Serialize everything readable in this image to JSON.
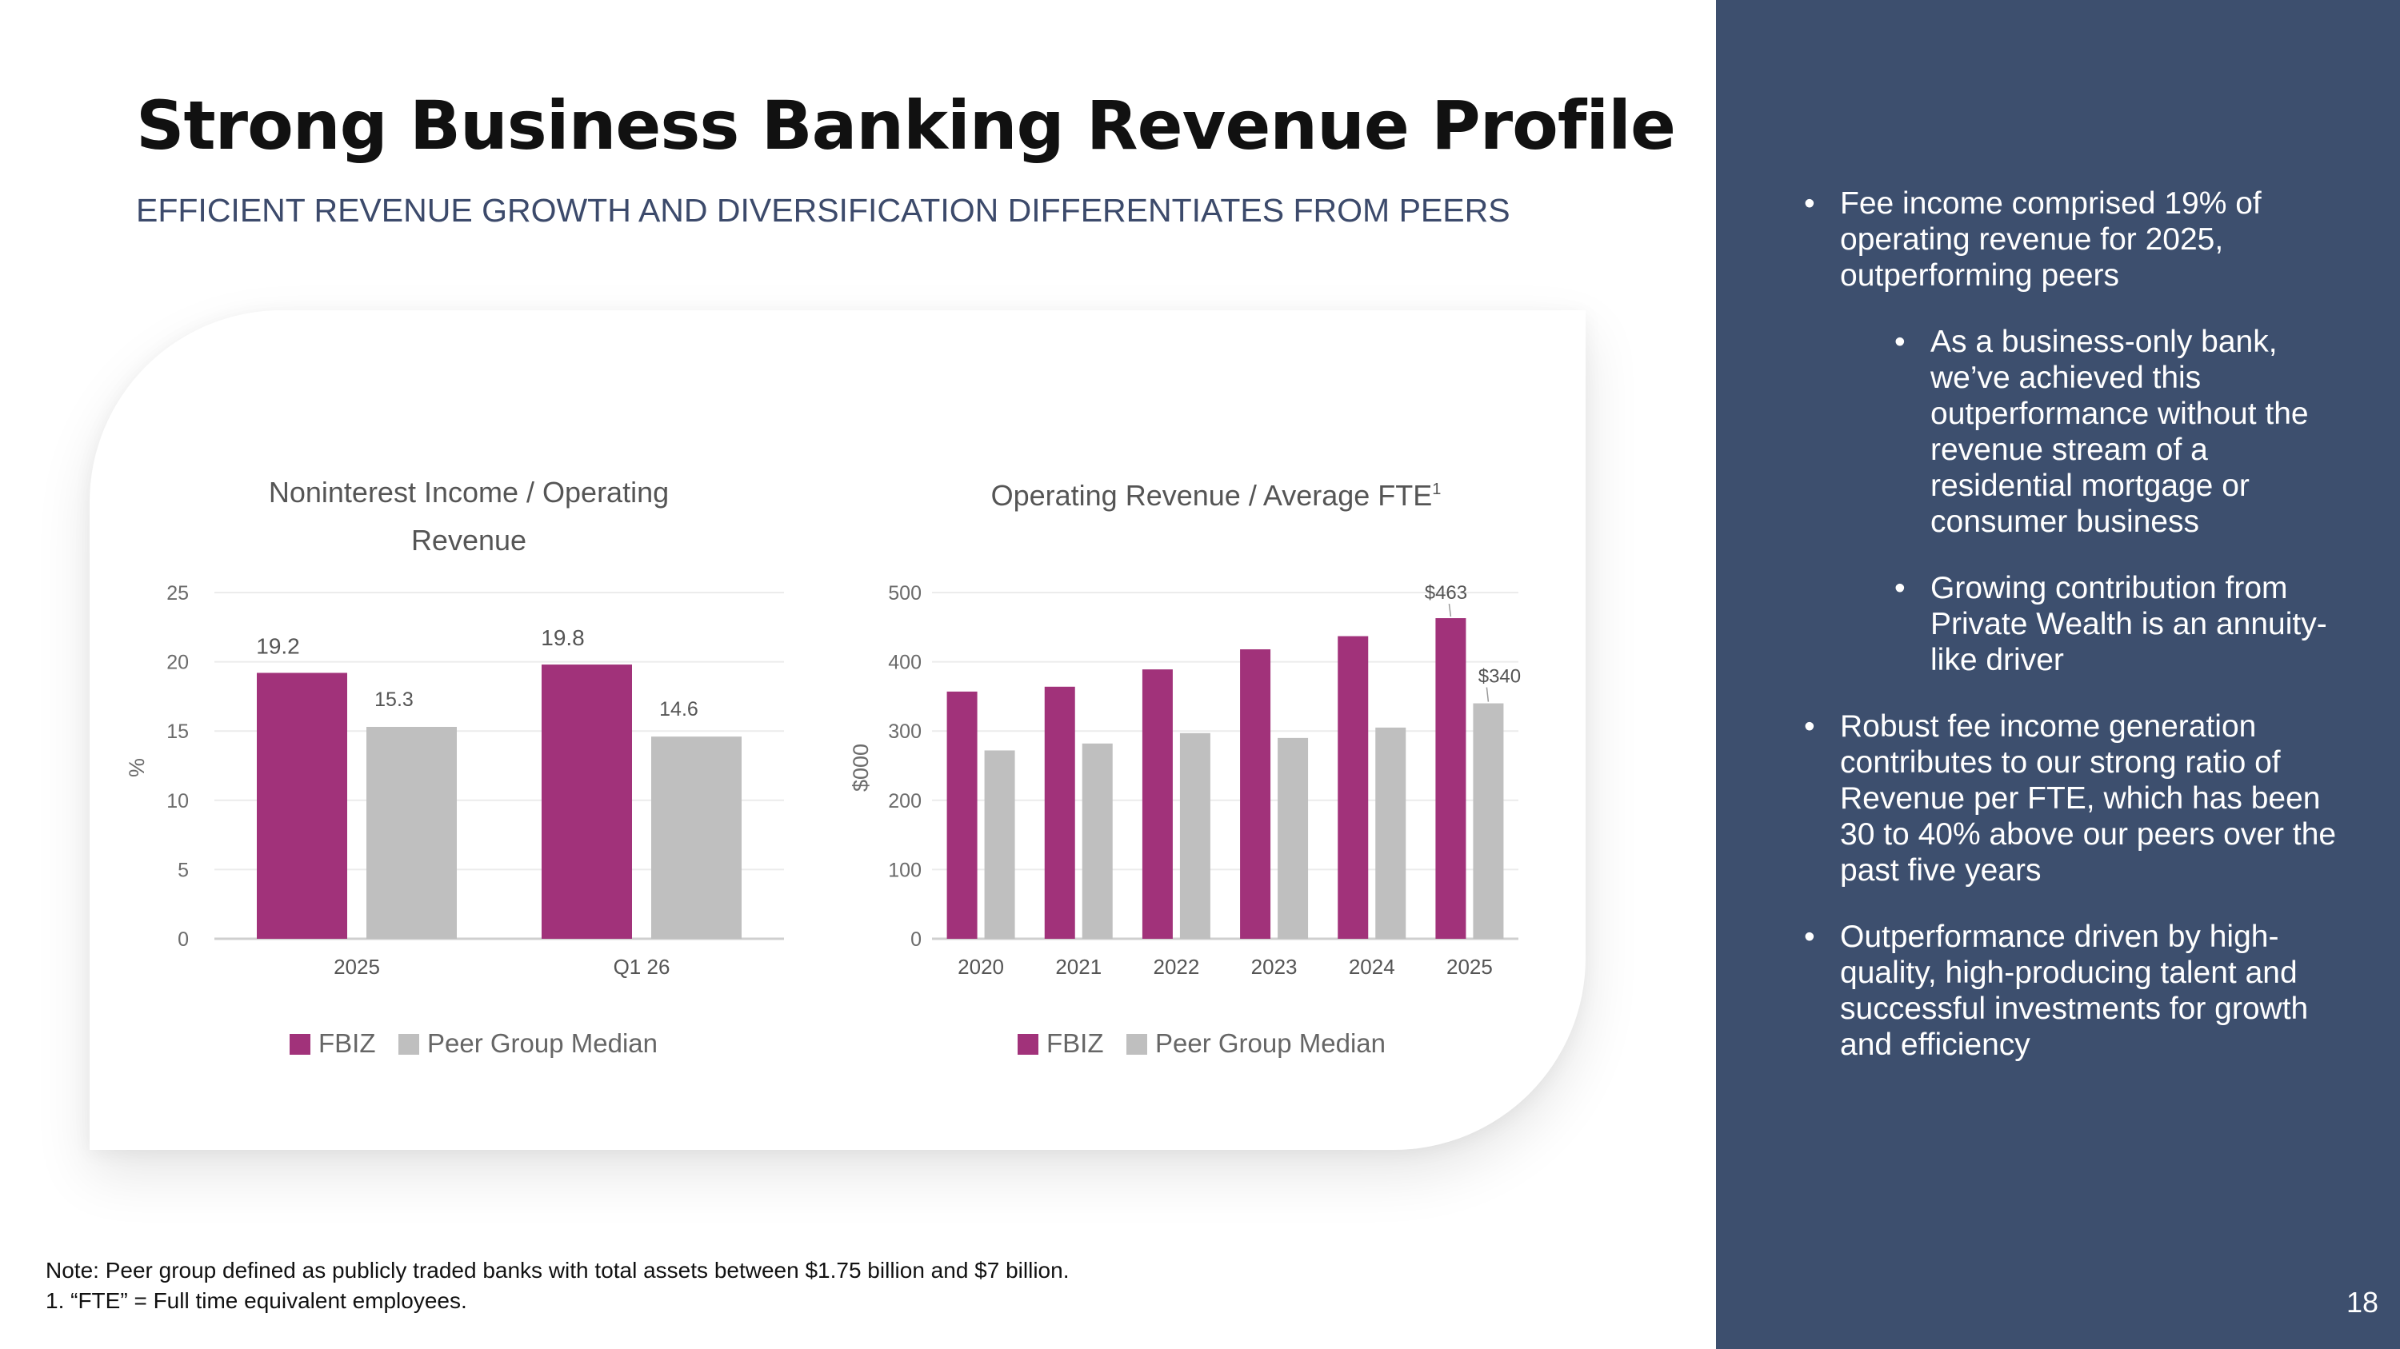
{
  "title": "Strong Business Banking Revenue Profile",
  "subtitle": "EFFICIENT REVENUE GROWTH AND DIVERSIFICATION DIFFERENTIATES FROM PEERS",
  "colors": {
    "fbiz": "#a1327a",
    "peer": "#bfbfbf",
    "sidebar": "#3d4f6e",
    "subtitle": "#3c4a6b"
  },
  "chart_data": [
    {
      "type": "bar",
      "title_lines": [
        "Noninterest Income / Operating",
        "Revenue"
      ],
      "ylabel": "%",
      "ylim": [
        0,
        25
      ],
      "yticks": [
        "0",
        "5",
        "10",
        "15",
        "20",
        "25"
      ],
      "categories": [
        "2025",
        "Q1 26"
      ],
      "series": [
        {
          "name": "FBIZ",
          "values": [
            19.2,
            19.8
          ],
          "labels": [
            "19.2",
            "19.8"
          ]
        },
        {
          "name": "Peer Group Median",
          "values": [
            15.3,
            14.6
          ],
          "labels": [
            "15.3",
            "14.6"
          ]
        }
      ],
      "grid": true,
      "legend": "bottom"
    },
    {
      "type": "bar",
      "title": "Operating Revenue / Average FTE",
      "title_sup": "1",
      "ylabel": "$000",
      "ylim": [
        0,
        500
      ],
      "yticks": [
        "0",
        "100",
        "200",
        "300",
        "400",
        "500"
      ],
      "categories": [
        "2020",
        "2021",
        "2022",
        "2023",
        "2024",
        "2025"
      ],
      "series": [
        {
          "name": "FBIZ",
          "values": [
            357,
            364,
            389,
            418,
            437,
            463
          ],
          "labels": [
            "",
            "",
            "",
            "",
            "",
            "$463"
          ]
        },
        {
          "name": "Peer Group Median",
          "values": [
            272,
            282,
            297,
            290,
            305,
            340
          ],
          "labels": [
            "",
            "",
            "",
            "",
            "",
            "$340"
          ]
        }
      ],
      "grid": true,
      "legend": "bottom"
    }
  ],
  "bullets": [
    {
      "text": "Fee income comprised 19% of operating revenue for 2025, outperforming peers",
      "level": 1
    },
    {
      "text": "As a business-only bank, we’ve achieved this outperformance without the revenue stream of a residential mortgage or consumer business",
      "level": 2
    },
    {
      "text": "Growing contribution from Private Wealth is an annuity-like driver",
      "level": 2
    },
    {
      "text": "Robust fee income generation contributes to our strong ratio of Revenue per FTE, which has been 30 to 40% above our peers over the past five years",
      "level": 1
    },
    {
      "text": "Outperformance driven by high-quality, high-producing talent and successful investments for growth and efficiency",
      "level": 1
    }
  ],
  "footnotes": {
    "note": "Note: Peer group defined as publicly traded banks with total assets between $1.75 billion and $7 billion.",
    "fn1": "1. “FTE” = Full time equivalent employees."
  },
  "page_number": "18"
}
